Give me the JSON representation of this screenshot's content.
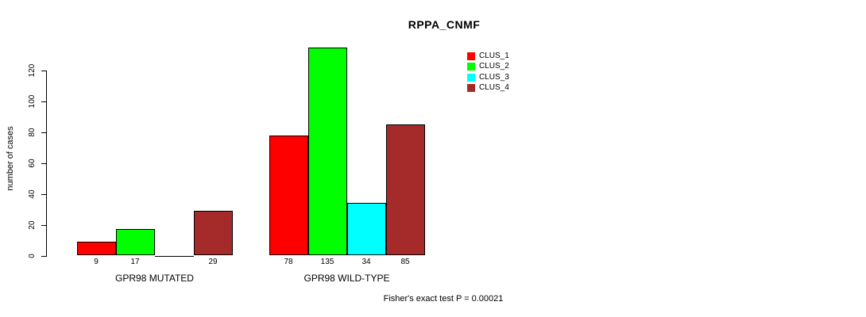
{
  "header": {
    "title": "RPPA_CNMF"
  },
  "legend": {
    "items": [
      {
        "label": "CLUS_1",
        "color": "#FF0000"
      },
      {
        "label": "CLUS_2",
        "color": "#00FF00"
      },
      {
        "label": "CLUS_3",
        "color": "#00FFFF"
      },
      {
        "label": "CLUS_4",
        "color": "#A52A2A"
      }
    ]
  },
  "chart_data": {
    "type": "bar",
    "title": "RPPA_CNMF",
    "xlabel": "",
    "ylabel": "number of cases",
    "ylim": [
      0,
      135
    ],
    "yticks": [
      0,
      20,
      40,
      60,
      80,
      100,
      120
    ],
    "grid": false,
    "legend_position": "top-right",
    "categories": [
      "GPR98 MUTATED",
      "GPR98 WILD-TYPE"
    ],
    "series": [
      {
        "name": "CLUS_1",
        "color": "#FF0000",
        "values": [
          9,
          78
        ]
      },
      {
        "name": "CLUS_2",
        "color": "#00FF00",
        "values": [
          17,
          135
        ]
      },
      {
        "name": "CLUS_3",
        "color": "#00FFFF",
        "values": [
          0,
          34
        ]
      },
      {
        "name": "CLUS_4",
        "color": "#A52A2A",
        "values": [
          29,
          85
        ]
      }
    ],
    "bar_value_labels": [
      [
        "9",
        "17",
        "",
        "29"
      ],
      [
        "78",
        "135",
        "34",
        "85"
      ]
    ],
    "annotation": "Fisher's exact test P = 0.00021"
  },
  "footer": {
    "stat_text": "Fisher's exact test P = 0.00021"
  }
}
